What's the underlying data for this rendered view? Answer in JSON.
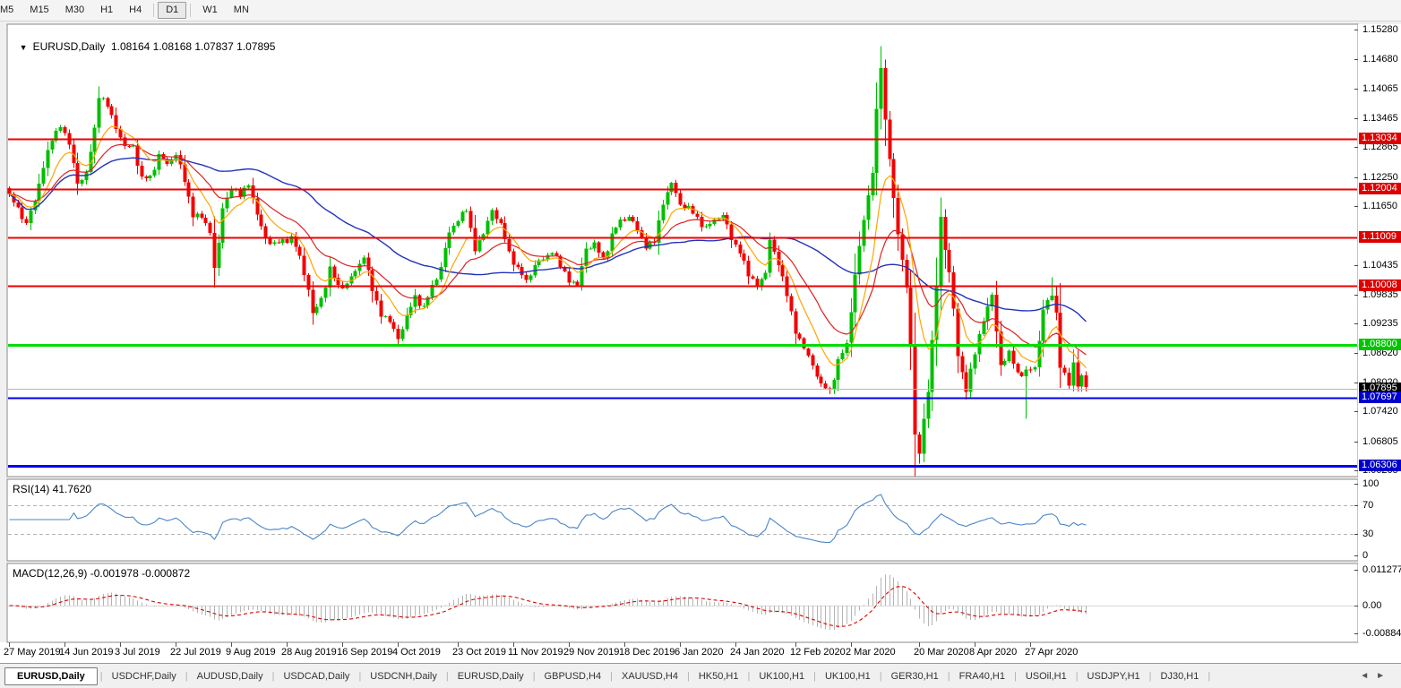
{
  "toolbar": {
    "timeframes": [
      "M5",
      "M15",
      "M30",
      "H1",
      "H4",
      "D1",
      "W1",
      "MN"
    ],
    "active_timeframe": "D1"
  },
  "chart": {
    "dropdown_icon": "▼",
    "title": "EURUSD,Daily",
    "ohlc": "1.08164 1.08168 1.07837 1.07895"
  },
  "chart_data": {
    "type": "candlestick",
    "symbol": "EURUSD",
    "timeframe": "Daily",
    "ohlc_display": {
      "open": "1.08164",
      "high": "1.08168",
      "low": "1.07837",
      "close": "1.07895"
    },
    "num_candles": 253,
    "price_range": [
      1.061,
      1.1538
    ],
    "close_anchors": [
      [
        0,
        1.1185
      ],
      [
        2,
        1.116
      ],
      [
        4,
        1.113
      ],
      [
        6,
        1.1175
      ],
      [
        8,
        1.125
      ],
      [
        10,
        1.13
      ],
      [
        12,
        1.1335
      ],
      [
        14,
        1.129
      ],
      [
        16,
        1.1215
      ],
      [
        18,
        1.123
      ],
      [
        20,
        1.1325
      ],
      [
        21,
        1.1395
      ],
      [
        23,
        1.137
      ],
      [
        25,
        1.133
      ],
      [
        27,
        1.1285
      ],
      [
        29,
        1.129
      ],
      [
        31,
        1.122
      ],
      [
        33,
        1.1225
      ],
      [
        35,
        1.127
      ],
      [
        37,
        1.125
      ],
      [
        39,
        1.1275
      ],
      [
        41,
        1.1215
      ],
      [
        43,
        1.115
      ],
      [
        45,
        1.114
      ],
      [
        47,
        1.1115
      ],
      [
        48,
        1.104
      ],
      [
        49,
        1.1085
      ],
      [
        50,
        1.116
      ],
      [
        52,
        1.1205
      ],
      [
        54,
        1.1185
      ],
      [
        56,
        1.1215
      ],
      [
        58,
        1.1145
      ],
      [
        60,
        1.11
      ],
      [
        62,
        1.1085
      ],
      [
        64,
        1.1095
      ],
      [
        66,
        1.11
      ],
      [
        68,
        1.106
      ],
      [
        70,
        1.0995
      ],
      [
        71,
        1.094
      ],
      [
        73,
        1.0975
      ],
      [
        75,
        1.1035
      ],
      [
        77,
        1.1
      ],
      [
        79,
        1.1005
      ],
      [
        81,
        1.103
      ],
      [
        83,
        1.1065
      ],
      [
        85,
        1.099
      ],
      [
        87,
        1.0945
      ],
      [
        89,
        1.0925
      ],
      [
        91,
        1.0895
      ],
      [
        93,
        1.0935
      ],
      [
        95,
        1.098
      ],
      [
        97,
        1.0955
      ],
      [
        99,
        1.1
      ],
      [
        101,
        1.104
      ],
      [
        103,
        1.111
      ],
      [
        105,
        1.114
      ],
      [
        107,
        1.1155
      ],
      [
        109,
        1.108
      ],
      [
        111,
        1.1105
      ],
      [
        113,
        1.116
      ],
      [
        115,
        1.1125
      ],
      [
        117,
        1.107
      ],
      [
        119,
        1.1035
      ],
      [
        121,
        1.101
      ],
      [
        123,
        1.1045
      ],
      [
        125,
        1.1055
      ],
      [
        127,
        1.1075
      ],
      [
        129,
        1.104
      ],
      [
        131,
        1.1015
      ],
      [
        133,
        1.1
      ],
      [
        135,
        1.108
      ],
      [
        137,
        1.1085
      ],
      [
        139,
        1.1055
      ],
      [
        141,
        1.1105
      ],
      [
        143,
        1.1135
      ],
      [
        145,
        1.1145
      ],
      [
        147,
        1.1115
      ],
      [
        149,
        1.1085
      ],
      [
        151,
        1.109
      ],
      [
        153,
        1.1175
      ],
      [
        155,
        1.121
      ],
      [
        157,
        1.117
      ],
      [
        159,
        1.116
      ],
      [
        161,
        1.114
      ],
      [
        163,
        1.112
      ],
      [
        165,
        1.1135
      ],
      [
        167,
        1.115
      ],
      [
        169,
        1.1095
      ],
      [
        171,
        1.1075
      ],
      [
        173,
        1.102
      ],
      [
        175,
        1.1005
      ],
      [
        177,
        1.1025
      ],
      [
        178,
        1.1095
      ],
      [
        180,
        1.105
      ],
      [
        182,
        1.098
      ],
      [
        184,
        1.091
      ],
      [
        186,
        1.087
      ],
      [
        188,
        1.084
      ],
      [
        190,
        1.0795
      ],
      [
        192,
        1.0785
      ],
      [
        194,
        1.0845
      ],
      [
        196,
        1.088
      ],
      [
        198,
        1.1025
      ],
      [
        200,
        1.1135
      ],
      [
        202,
        1.124
      ],
      [
        203,
        1.136
      ],
      [
        204,
        1.145
      ],
      [
        205,
        1.134
      ],
      [
        206,
        1.127
      ],
      [
        207,
        1.118
      ],
      [
        208,
        1.1105
      ],
      [
        210,
        1.1
      ],
      [
        211,
        1.088
      ],
      [
        212,
        1.069
      ],
      [
        213,
        1.0655
      ],
      [
        214,
        1.0725
      ],
      [
        215,
        1.079
      ],
      [
        216,
        1.0885
      ],
      [
        217,
        1.1
      ],
      [
        218,
        1.114
      ],
      [
        219,
        1.108
      ],
      [
        220,
        1.103
      ],
      [
        221,
        1.095
      ],
      [
        222,
        1.0855
      ],
      [
        224,
        1.079
      ],
      [
        226,
        1.086
      ],
      [
        228,
        1.0935
      ],
      [
        230,
        1.098
      ],
      [
        231,
        1.0905
      ],
      [
        232,
        1.084
      ],
      [
        234,
        1.0862
      ],
      [
        236,
        1.082
      ],
      [
        238,
        1.0825
      ],
      [
        240,
        1.083
      ],
      [
        242,
        1.0955
      ],
      [
        244,
        1.098
      ],
      [
        245,
        1.0945
      ],
      [
        246,
        1.084
      ],
      [
        248,
        1.0795
      ],
      [
        249,
        1.084
      ],
      [
        250,
        1.08
      ],
      [
        251,
        1.0816
      ],
      [
        252,
        1.079
      ]
    ],
    "wick_overrides": {
      "21": {
        "high": 1.1412
      },
      "91": {
        "low": 1.0879
      },
      "192": {
        "low": 1.0778
      },
      "204": {
        "high": 1.1495
      },
      "213": {
        "low": 1.0636
      },
      "238": {
        "low": 1.0727
      },
      "244": {
        "high": 1.1019
      },
      "252": {
        "high": 1.08168,
        "low": 1.07837
      }
    },
    "hlines": [
      {
        "p": 1.13034,
        "color": "#ee0000",
        "w": 2
      },
      {
        "p": 1.12004,
        "color": "#ee0000",
        "w": 2
      },
      {
        "p": 1.11009,
        "color": "#ee0000",
        "w": 2
      },
      {
        "p": 1.10008,
        "color": "#ee0000",
        "w": 2
      },
      {
        "p": 1.088,
        "color": "#00dd00",
        "w": 3
      },
      {
        "p": 1.07697,
        "color": "#0000ee",
        "w": 2
      },
      {
        "p": 1.06306,
        "color": "#0000ee",
        "w": 3
      },
      {
        "p": 1.07895,
        "color": "#b8b8b8",
        "w": 1
      }
    ],
    "axis_labels": [
      "1.15280",
      "1.14680",
      "1.14065",
      "1.13465",
      "1.12865",
      "1.12250",
      "1.11650",
      "1.10435",
      "1.09835",
      "1.09235",
      "1.08620",
      "1.08020",
      "1.07420",
      "1.06805",
      "1.06205"
    ],
    "axis_badges": [
      {
        "text": "1.13034",
        "bg": "#dd0000"
      },
      {
        "text": "1.12004",
        "bg": "#dd0000"
      },
      {
        "text": "1.11009",
        "bg": "#dd0000"
      },
      {
        "text": "1.10008",
        "bg": "#dd0000"
      },
      {
        "text": "1.08800",
        "bg": "#00c400"
      },
      {
        "text": "1.07895",
        "bg": "#000000"
      },
      {
        "text": "1.07697",
        "bg": "#0000cc"
      },
      {
        "text": "1.06306",
        "bg": "#0000cc"
      }
    ],
    "date_ticks": [
      [
        0,
        "27 May 2019"
      ],
      [
        13,
        "14 Jun 2019"
      ],
      [
        26,
        "3 Jul 2019"
      ],
      [
        39,
        "22 Jul 2019"
      ],
      [
        52,
        "9 Aug 2019"
      ],
      [
        65,
        "28 Aug 2019"
      ],
      [
        78,
        "16 Sep 2019"
      ],
      [
        91,
        "4 Oct 2019"
      ],
      [
        105,
        "23 Oct 2019"
      ],
      [
        118,
        "11 Nov 2019"
      ],
      [
        131,
        "29 Nov 2019"
      ],
      [
        144,
        "18 Dec 2019"
      ],
      [
        157,
        "6 Jan 2020"
      ],
      [
        170,
        "24 Jan 2020"
      ],
      [
        184,
        "12 Feb 2020"
      ],
      [
        197,
        "2 Mar 2020"
      ],
      [
        213,
        "20 Mar 2020"
      ],
      [
        226,
        "8 Apr 2020"
      ],
      [
        239,
        "27 Apr 2020"
      ]
    ],
    "rsi": {
      "label": "RSI(14) 41.7620",
      "period": 14,
      "current": 41.762,
      "levels": [
        {
          "text": "100",
          "v": 100
        },
        {
          "text": "70",
          "v": 70
        },
        {
          "text": "30",
          "v": 30
        },
        {
          "text": "0",
          "v": 0
        }
      ],
      "dashed_levels": [
        70,
        30
      ]
    },
    "macd": {
      "label": "MACD(12,26,9) -0.001978 -0.000872",
      "fast": 12,
      "slow": 26,
      "signal": 9,
      "current_macd": -0.001978,
      "current_signal": -0.000872,
      "axis": [
        {
          "text": "0.011277",
          "v": 0.011277
        },
        {
          "text": "0.00",
          "v": 0
        },
        {
          "text": "-0.008845",
          "v": -0.008845
        }
      ]
    },
    "colors": {
      "candle_up": "#00bf00",
      "candle_down": "#f20000",
      "ma_fast_orange": "#ffa500",
      "ma_mid_red": "#dd2222",
      "ma_slow_blue": "#2233bb",
      "rsi_line": "#4a86c8",
      "macd_histogram": "#b4b4b4",
      "macd_signal": "#dd0000",
      "level_dash": "#b4b4b4"
    }
  },
  "tabs": {
    "items": [
      "EURUSD,Daily",
      "USDCHF,Daily",
      "AUDUSD,Daily",
      "USDCAD,Daily",
      "USDCNH,Daily",
      "EURUSD,Daily",
      "GBPUSD,H4",
      "XAUUSD,H4",
      "HK50,H1",
      "UK100,H1",
      "UK100,H1",
      "GER30,H1",
      "FRA40,H1",
      "USOil,H1",
      "USDJPY,H1",
      "DJ30,H1"
    ],
    "active_index": 0,
    "scroll_left_icon": "◄",
    "scroll_right_icon": "►"
  }
}
